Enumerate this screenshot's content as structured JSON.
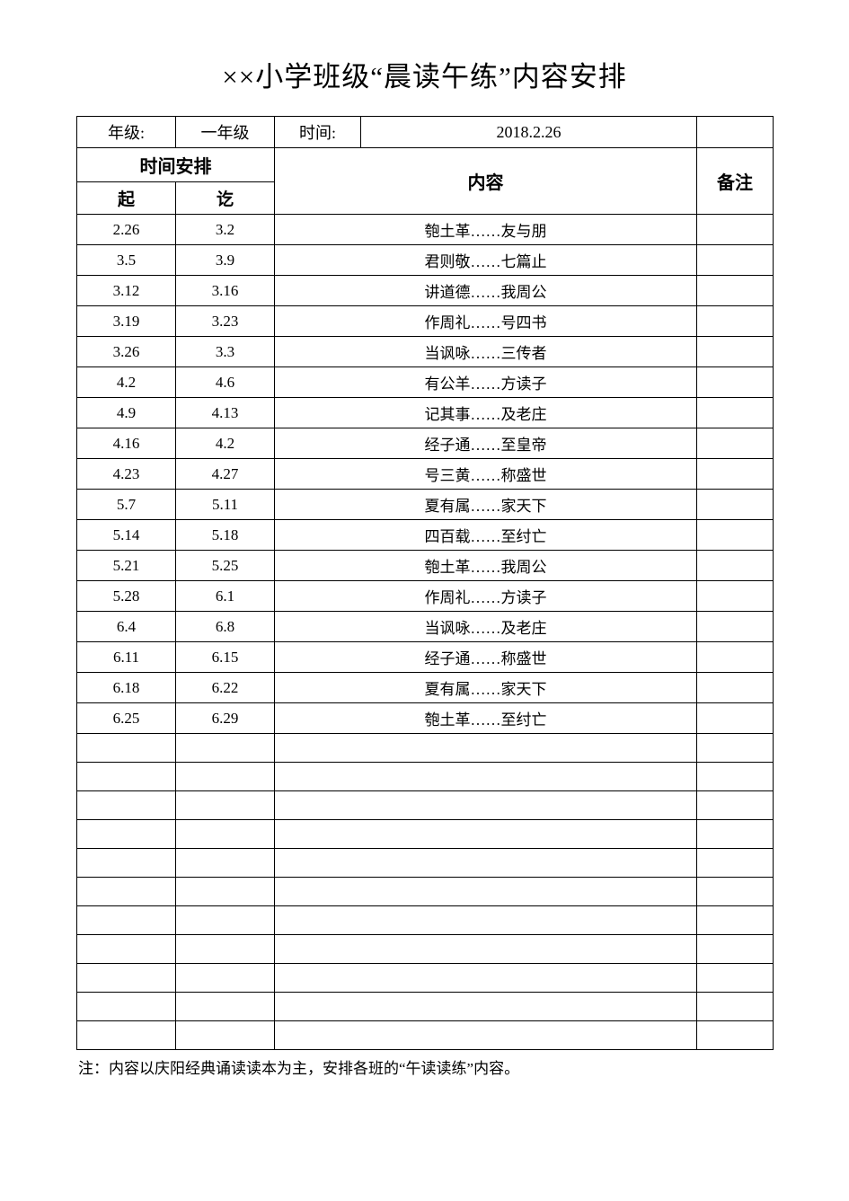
{
  "title": "××小学班级“晨读午练”内容安排",
  "info": {
    "gradeLabel": "年级:",
    "gradeValue": "一年级",
    "timeLabel": "时间:",
    "timeValue": "2018.2.26"
  },
  "headers": {
    "timeArrangement": "时间安排",
    "content": "内容",
    "remark": "备注",
    "start": "起",
    "end": "讫"
  },
  "table": {
    "colWidths": {
      "start": 110,
      "end": 110,
      "content": 470,
      "remark": 85
    },
    "borderColor": "#000000",
    "backgroundColor": "#ffffff",
    "textColor": "#000000",
    "titleFontSize": 31,
    "headerFontSize": 20,
    "subHeaderFontSize": 19,
    "dataFontSize": 17,
    "footnoteFontSize": 17
  },
  "rows": [
    {
      "start": "2.26",
      "end": "3.2",
      "content": "匏土革……友与朋",
      "remark": ""
    },
    {
      "start": "3.5",
      "end": "3.9",
      "content": "君则敬……七篇止",
      "remark": ""
    },
    {
      "start": "3.12",
      "end": "3.16",
      "content": "讲道德……我周公",
      "remark": ""
    },
    {
      "start": "3.19",
      "end": "3.23",
      "content": "作周礼……号四书",
      "remark": ""
    },
    {
      "start": "3.26",
      "end": "3.3",
      "content": "当讽咏……三传者",
      "remark": ""
    },
    {
      "start": "4.2",
      "end": "4.6",
      "content": "有公羊……方读子",
      "remark": ""
    },
    {
      "start": "4.9",
      "end": "4.13",
      "content": "记其事……及老庄",
      "remark": ""
    },
    {
      "start": "4.16",
      "end": "4.2",
      "content": "经子通……至皇帝",
      "remark": ""
    },
    {
      "start": "4.23",
      "end": "4.27",
      "content": "号三黄……称盛世",
      "remark": ""
    },
    {
      "start": "5.7",
      "end": "5.11",
      "content": "夏有属……家天下",
      "remark": ""
    },
    {
      "start": "5.14",
      "end": "5.18",
      "content": "四百载……至纣亡",
      "remark": ""
    },
    {
      "start": "5.21",
      "end": "5.25",
      "content": "匏土革……我周公",
      "remark": ""
    },
    {
      "start": "5.28",
      "end": "6.1",
      "content": "作周礼……方读子",
      "remark": ""
    },
    {
      "start": "6.4",
      "end": "6.8",
      "content": "当讽咏……及老庄",
      "remark": ""
    },
    {
      "start": "6.11",
      "end": "6.15",
      "content": "经子通……称盛世",
      "remark": ""
    },
    {
      "start": "6.18",
      "end": "6.22",
      "content": "夏有属……家天下",
      "remark": ""
    },
    {
      "start": "6.25",
      "end": "6.29",
      "content": "匏土革……至纣亡",
      "remark": ""
    }
  ],
  "emptyRowCount": 11,
  "footnote": "注：内容以庆阳经典诵读读本为主，安排各班的“午读读练”内容。"
}
